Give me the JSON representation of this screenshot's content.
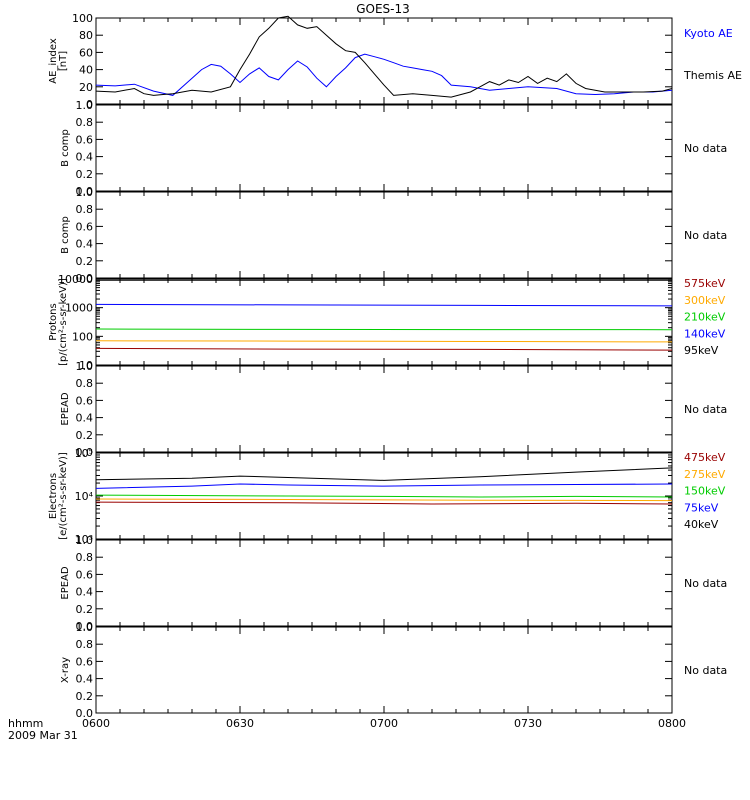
{
  "chart_data": {
    "title": "GOES-13",
    "xtick_labels": [
      "0600",
      "0630",
      "0700",
      "0730",
      "0800"
    ],
    "x_minutes_range": [
      360,
      480
    ],
    "footer": {
      "line1": "hhmm",
      "line2": "2009 Mar 31"
    },
    "panels": [
      {
        "type": "line",
        "ylabel": [
          "AE_index",
          "[nT]"
        ],
        "ylim": [
          0,
          100
        ],
        "yscale": "linear",
        "yticks": [
          "0",
          "20",
          "40",
          "60",
          "80",
          "100"
        ],
        "legend": [
          {
            "text": "Kyoto AE",
            "color": "#0000ff"
          },
          {
            "text": "Themis AE",
            "color": "#000000"
          }
        ],
        "series": [
          {
            "name": "Kyoto AE",
            "color": "#0000ff",
            "points": [
              [
                360,
                22
              ],
              [
                364,
                21
              ],
              [
                368,
                23
              ],
              [
                372,
                15
              ],
              [
                376,
                10
              ],
              [
                380,
                30
              ],
              [
                382,
                40
              ],
              [
                384,
                46
              ],
              [
                386,
                44
              ],
              [
                388,
                35
              ],
              [
                390,
                25
              ],
              [
                392,
                35
              ],
              [
                394,
                42
              ],
              [
                396,
                32
              ],
              [
                398,
                28
              ],
              [
                400,
                40
              ],
              [
                402,
                50
              ],
              [
                404,
                43
              ],
              [
                406,
                30
              ],
              [
                408,
                20
              ],
              [
                410,
                32
              ],
              [
                412,
                42
              ],
              [
                414,
                54
              ],
              [
                416,
                58
              ],
              [
                418,
                55
              ],
              [
                420,
                52
              ],
              [
                422,
                48
              ],
              [
                424,
                44
              ],
              [
                426,
                42
              ],
              [
                428,
                40
              ],
              [
                430,
                38
              ],
              [
                432,
                33
              ],
              [
                434,
                22
              ],
              [
                438,
                20
              ],
              [
                442,
                16
              ],
              [
                446,
                18
              ],
              [
                450,
                20
              ],
              [
                456,
                18
              ],
              [
                460,
                12
              ],
              [
                464,
                11
              ],
              [
                468,
                12
              ],
              [
                472,
                14
              ],
              [
                476,
                14
              ],
              [
                480,
                16
              ]
            ]
          },
          {
            "name": "Themis AE",
            "color": "#000000",
            "points": [
              [
                360,
                15
              ],
              [
                364,
                14
              ],
              [
                368,
                18
              ],
              [
                370,
                12
              ],
              [
                372,
                10
              ],
              [
                374,
                11
              ],
              [
                376,
                12
              ],
              [
                380,
                16
              ],
              [
                384,
                14
              ],
              [
                388,
                20
              ],
              [
                390,
                40
              ],
              [
                392,
                58
              ],
              [
                394,
                78
              ],
              [
                396,
                88
              ],
              [
                398,
                100
              ],
              [
                400,
                102
              ],
              [
                402,
                92
              ],
              [
                404,
                88
              ],
              [
                406,
                90
              ],
              [
                408,
                80
              ],
              [
                410,
                70
              ],
              [
                412,
                62
              ],
              [
                414,
                60
              ],
              [
                416,
                48
              ],
              [
                418,
                35
              ],
              [
                420,
                22
              ],
              [
                422,
                10
              ],
              [
                426,
                12
              ],
              [
                430,
                10
              ],
              [
                434,
                8
              ],
              [
                438,
                14
              ],
              [
                440,
                20
              ],
              [
                442,
                26
              ],
              [
                444,
                22
              ],
              [
                446,
                28
              ],
              [
                448,
                25
              ],
              [
                450,
                32
              ],
              [
                452,
                24
              ],
              [
                454,
                30
              ],
              [
                456,
                26
              ],
              [
                458,
                35
              ],
              [
                460,
                24
              ],
              [
                462,
                18
              ],
              [
                466,
                14
              ],
              [
                470,
                14
              ],
              [
                474,
                14
              ],
              [
                478,
                15
              ],
              [
                480,
                18
              ]
            ]
          }
        ]
      },
      {
        "type": "empty",
        "ylabel": [
          "B comp"
        ],
        "ylim": [
          0,
          1
        ],
        "yscale": "linear",
        "yticks": [
          "0.0",
          "0.2",
          "0.4",
          "0.6",
          "0.8",
          "1.0"
        ],
        "nodata": "No data"
      },
      {
        "type": "empty",
        "ylabel": [
          "B comp"
        ],
        "ylim": [
          0,
          1
        ],
        "yscale": "linear",
        "yticks": [
          "0.0",
          "0.2",
          "0.4",
          "0.6",
          "0.8",
          "1.0"
        ],
        "nodata": "No data"
      },
      {
        "type": "line",
        "ylabel": [
          "Protons",
          "[p/(cm²-s-sr-keV)]"
        ],
        "ylim": [
          10,
          10000
        ],
        "yscale": "log",
        "yticks": [
          "10",
          "100",
          "1000",
          "10000"
        ],
        "legend": [
          {
            "text": "575keV",
            "color": "#990000"
          },
          {
            "text": "300keV",
            "color": "#ffaa00"
          },
          {
            "text": "210keV",
            "color": "#00cc00"
          },
          {
            "text": "140keV",
            "color": "#0000ff"
          },
          {
            "text": "95keV",
            "color": "#000000"
          }
        ],
        "series": [
          {
            "name": "95keV",
            "color": "#000000",
            "points": [
              [
                360,
                9000
              ],
              [
                420,
                9000
              ],
              [
                480,
                9000
              ]
            ]
          },
          {
            "name": "140keV",
            "color": "#0000ff",
            "points": [
              [
                360,
                1300
              ],
              [
                400,
                1250
              ],
              [
                440,
                1200
              ],
              [
                480,
                1150
              ]
            ]
          },
          {
            "name": "210keV",
            "color": "#00cc00",
            "points": [
              [
                360,
                180
              ],
              [
                400,
                175
              ],
              [
                440,
                172
              ],
              [
                480,
                170
              ]
            ]
          },
          {
            "name": "300keV",
            "color": "#ffaa00",
            "points": [
              [
                360,
                70
              ],
              [
                400,
                68
              ],
              [
                440,
                66
              ],
              [
                480,
                64
              ]
            ]
          },
          {
            "name": "575keV",
            "color": "#990000",
            "points": [
              [
                360,
                38
              ],
              [
                400,
                36
              ],
              [
                440,
                35
              ],
              [
                480,
                33
              ]
            ]
          }
        ]
      },
      {
        "type": "empty",
        "ylabel": [
          "EPEAD"
        ],
        "ylim": [
          0,
          1
        ],
        "yscale": "linear",
        "yticks": [
          "0.0",
          "0.2",
          "0.4",
          "0.6",
          "0.8",
          "1.0"
        ],
        "nodata": "No data"
      },
      {
        "type": "line",
        "ylabel": [
          "Electrons",
          "[e/(cm²-s-sr-keV)]"
        ],
        "ylim": [
          1000,
          100000
        ],
        "yscale": "log",
        "yticks": [
          "10³",
          "10⁴",
          "10⁵"
        ],
        "legend": [
          {
            "text": "475keV",
            "color": "#990000"
          },
          {
            "text": "275keV",
            "color": "#ffaa00"
          },
          {
            "text": "150keV",
            "color": "#00cc00"
          },
          {
            "text": "75keV",
            "color": "#0000ff"
          },
          {
            "text": "40keV",
            "color": "#000000"
          }
        ],
        "series": [
          {
            "name": "40keV",
            "color": "#000000",
            "points": [
              [
                360,
                24000
              ],
              [
                380,
                26000
              ],
              [
                390,
                29000
              ],
              [
                400,
                27000
              ],
              [
                420,
                23000
              ],
              [
                440,
                28000
              ],
              [
                460,
                36000
              ],
              [
                480,
                45000
              ]
            ]
          },
          {
            "name": "75keV",
            "color": "#0000ff",
            "points": [
              [
                360,
                15000
              ],
              [
                380,
                17000
              ],
              [
                390,
                19000
              ],
              [
                400,
                18000
              ],
              [
                420,
                17000
              ],
              [
                440,
                18000
              ],
              [
                460,
                18500
              ],
              [
                480,
                19000
              ]
            ]
          },
          {
            "name": "150keV",
            "color": "#00cc00",
            "points": [
              [
                360,
                10500
              ],
              [
                400,
                10000
              ],
              [
                420,
                9800
              ],
              [
                440,
                9500
              ],
              [
                460,
                9800
              ],
              [
                480,
                9500
              ]
            ]
          },
          {
            "name": "275keV",
            "color": "#ffaa00",
            "points": [
              [
                360,
                8500
              ],
              [
                400,
                8300
              ],
              [
                440,
                8000
              ],
              [
                480,
                7800
              ]
            ]
          },
          {
            "name": "475keV",
            "color": "#990000",
            "points": [
              [
                360,
                7200
              ],
              [
                400,
                7000
              ],
              [
                430,
                6500
              ],
              [
                460,
                6800
              ],
              [
                480,
                6500
              ]
            ]
          }
        ]
      },
      {
        "type": "empty",
        "ylabel": [
          "EPEAD"
        ],
        "ylim": [
          0,
          1
        ],
        "yscale": "linear",
        "yticks": [
          "0.0",
          "0.2",
          "0.4",
          "0.6",
          "0.8",
          "1.0"
        ],
        "nodata": "No data"
      },
      {
        "type": "empty",
        "ylabel": [
          "X-ray"
        ],
        "ylim": [
          0,
          1
        ],
        "yscale": "linear",
        "yticks": [
          "0.0",
          "0.2",
          "0.4",
          "0.6",
          "0.8",
          "1.0"
        ],
        "nodata": "No data"
      }
    ]
  }
}
